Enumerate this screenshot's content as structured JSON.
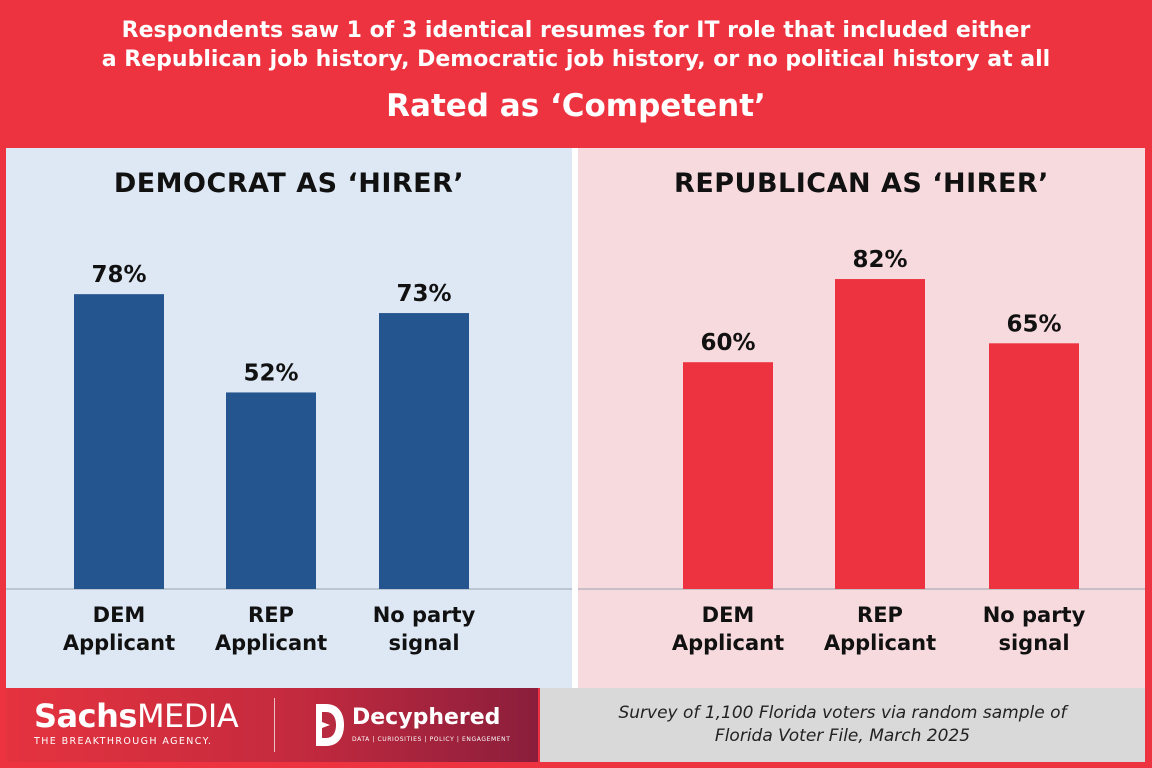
{
  "header": {
    "subtitle_line1": "Respondents saw 1 of 3 identical resumes for IT role that included either",
    "subtitle_line2": "a Republican job history, Democratic job history, or no political history at all",
    "title": "Rated as ‘Competent’"
  },
  "chart_data": [
    {
      "type": "bar",
      "title": "DEMOCRAT AS ‘HIRER’",
      "categories": [
        [
          "DEM",
          "Applicant"
        ],
        [
          "REP",
          "Applicant"
        ],
        [
          "No party",
          "signal"
        ]
      ],
      "values": [
        78,
        52,
        73
      ],
      "value_labels": [
        "78%",
        "52%",
        "73%"
      ],
      "ylim": [
        0,
        100
      ],
      "grid": false,
      "color": "#25558f"
    },
    {
      "type": "bar",
      "title": "REPUBLICAN AS ‘HIRER’",
      "categories": [
        [
          "DEM",
          "Applicant"
        ],
        [
          "REP",
          "Applicant"
        ],
        [
          "No party",
          "signal"
        ]
      ],
      "values": [
        60,
        82,
        65
      ],
      "value_labels": [
        "60%",
        "82%",
        "65%"
      ],
      "ylim": [
        0,
        100
      ],
      "grid": false,
      "color": "#ee3340"
    }
  ],
  "footer": {
    "note_line1": "Survey of 1,100 Florida voters via random sample of",
    "note_line2": "Florida Voter File, March 2025",
    "logo1_bold": "Sachs",
    "logo1_light": "MEDIA",
    "logo1_tagline": "THE BREAKTHROUGH AGENCY.",
    "logo2_name": "Decyphered",
    "logo2_tagline": "DATA | CURIOSITIES | POLICY | ENGAGEMENT"
  },
  "colors": {
    "accent_red": "#ee3340",
    "dem_blue": "#25558f",
    "panel_left_bg": "#dde8f4",
    "panel_right_bg": "#f7dadd"
  }
}
